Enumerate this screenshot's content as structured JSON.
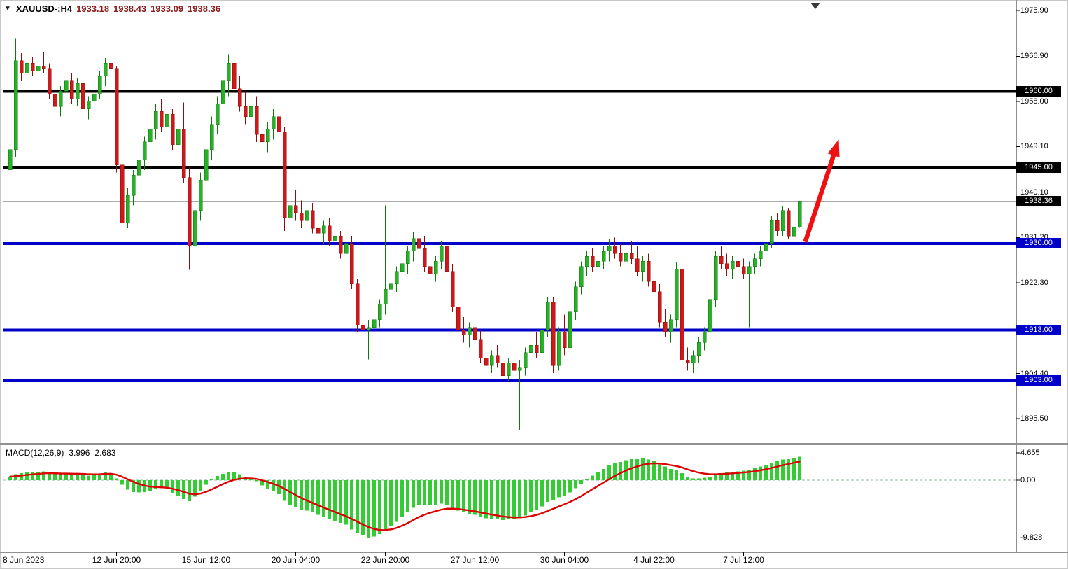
{
  "header": {
    "symbol_period": "XAUUSD-;H4",
    "open": "1933.18",
    "high": "1938.43",
    "low": "1933.09",
    "close": "1938.36"
  },
  "icons": {
    "symbol_dropdown": "▼"
  },
  "colors": {
    "bull_fill": "#28b028",
    "bull_stroke": "#0c7a0c",
    "bear_fill": "#d01818",
    "bear_stroke": "#8c0f0f",
    "line_black": "#000000",
    "line_blue": "#0000c8",
    "bid_line": "#aaaaaa",
    "bid_box": "#000000",
    "arrow": "#ee1111",
    "macd_hist": "#33cc33",
    "macd_signal": "#dd0000",
    "macd_zero": "#9ab89a",
    "axis_line": "#909090",
    "tick": "#000000"
  },
  "chart_data": {
    "type": "candlestick",
    "symbol": "XAUUSD",
    "timeframe": "H4",
    "grid": "off",
    "legend_position": "none",
    "price_axis": {
      "ylim_top": 1977.7,
      "ylim_bottom": 1890.7,
      "ticks": [
        {
          "v": 1975.9,
          "t": "1975.90"
        },
        {
          "v": 1966.9,
          "t": "1966.90"
        },
        {
          "v": 1958.0,
          "t": "1958.00"
        },
        {
          "v": 1949.1,
          "t": "1949.10"
        },
        {
          "v": 1940.1,
          "t": "1940.10"
        },
        {
          "v": 1931.2,
          "t": "1931.20"
        },
        {
          "v": 1922.3,
          "t": "1922.30"
        },
        {
          "v": 1904.4,
          "t": "1904.40"
        },
        {
          "v": 1895.5,
          "t": "1895.50"
        }
      ]
    },
    "time_axis": {
      "labels": [
        "8 Jun 2023",
        "12 Jun 20:00",
        "15 Jun 12:00",
        "20 Jun 04:00",
        "22 Jun 20:00",
        "27 Jun 12:00",
        "30 Jun 04:00",
        "4 Jul 22:00",
        "7 Jul 12:00"
      ],
      "indices": [
        0,
        19,
        35,
        51,
        67,
        83,
        99,
        115,
        131
      ]
    },
    "horizontal_lines": [
      {
        "price": 1960.0,
        "label": "1960.00",
        "color": "black"
      },
      {
        "price": 1945.0,
        "label": "1945.00",
        "color": "black"
      },
      {
        "price": 1930.0,
        "label": "1930.00",
        "color": "blue"
      },
      {
        "price": 1913.0,
        "label": "1913.00",
        "color": "blue"
      },
      {
        "price": 1903.0,
        "label": "1903.00",
        "color": "blue"
      }
    ],
    "bid": {
      "price": 1938.36,
      "label": "1938.36"
    },
    "arrow": {
      "from": {
        "index": 142,
        "price": 1930.3
      },
      "to": {
        "index": 148,
        "price": 1950.5
      }
    },
    "candles": [
      [
        1944.5,
        1950.0,
        1943.0,
        1948.5
      ],
      [
        1948.5,
        1970.3,
        1947.0,
        1966.0
      ],
      [
        1966.0,
        1967.5,
        1962.0,
        1963.5
      ],
      [
        1963.5,
        1966.5,
        1961.5,
        1965.5
      ],
      [
        1965.5,
        1966.8,
        1963.0,
        1964.0
      ],
      [
        1964.0,
        1966.0,
        1961.0,
        1965.0
      ],
      [
        1965.0,
        1967.8,
        1963.5,
        1964.5
      ],
      [
        1964.5,
        1965.5,
        1958.5,
        1959.5
      ],
      [
        1959.5,
        1962.0,
        1956.0,
        1957.0
      ],
      [
        1957.0,
        1961.0,
        1955.0,
        1960.0
      ],
      [
        1960.0,
        1963.0,
        1958.0,
        1962.0
      ],
      [
        1962.0,
        1963.5,
        1957.5,
        1958.5
      ],
      [
        1958.5,
        1962.5,
        1957.0,
        1961.5
      ],
      [
        1961.5,
        1962.5,
        1955.5,
        1956.5
      ],
      [
        1956.5,
        1959.0,
        1954.5,
        1958.0
      ],
      [
        1958.0,
        1960.5,
        1956.0,
        1959.5
      ],
      [
        1959.5,
        1964.0,
        1958.5,
        1963.0
      ],
      [
        1963.0,
        1966.5,
        1961.0,
        1965.5
      ],
      [
        1965.5,
        1969.5,
        1963.5,
        1964.5
      ],
      [
        1964.5,
        1965.0,
        1944.0,
        1945.5
      ],
      [
        1945.5,
        1947.0,
        1931.8,
        1934.0
      ],
      [
        1934.0,
        1941.0,
        1933.0,
        1939.5
      ],
      [
        1939.5,
        1944.5,
        1937.5,
        1943.5
      ],
      [
        1943.5,
        1947.5,
        1941.5,
        1946.5
      ],
      [
        1946.5,
        1951.0,
        1944.5,
        1950.0
      ],
      [
        1950.0,
        1954.0,
        1948.0,
        1952.5
      ],
      [
        1952.5,
        1957.5,
        1950.5,
        1956.0
      ],
      [
        1956.0,
        1958.5,
        1952.0,
        1953.0
      ],
      [
        1953.0,
        1957.0,
        1951.0,
        1955.5
      ],
      [
        1955.5,
        1956.5,
        1948.5,
        1949.5
      ],
      [
        1949.5,
        1953.5,
        1947.5,
        1952.5
      ],
      [
        1952.5,
        1957.8,
        1942.0,
        1943.0
      ],
      [
        1943.0,
        1945.0,
        1924.8,
        1929.5
      ],
      [
        1929.5,
        1938.0,
        1927.0,
        1936.5
      ],
      [
        1936.5,
        1944.0,
        1934.5,
        1942.5
      ],
      [
        1942.5,
        1950.0,
        1941.0,
        1948.5
      ],
      [
        1948.5,
        1955.0,
        1946.5,
        1953.5
      ],
      [
        1953.5,
        1959.0,
        1951.5,
        1957.5
      ],
      [
        1957.5,
        1963.5,
        1955.5,
        1962.0
      ],
      [
        1962.0,
        1967.3,
        1959.0,
        1965.5
      ],
      [
        1965.5,
        1966.5,
        1959.5,
        1960.5
      ],
      [
        1960.5,
        1963.0,
        1956.0,
        1957.0
      ],
      [
        1957.0,
        1960.0,
        1953.5,
        1955.0
      ],
      [
        1955.0,
        1958.5,
        1952.0,
        1957.0
      ],
      [
        1957.0,
        1959.0,
        1950.0,
        1951.5
      ],
      [
        1951.5,
        1954.5,
        1948.5,
        1950.0
      ],
      [
        1950.0,
        1954.0,
        1948.0,
        1952.5
      ],
      [
        1952.5,
        1956.5,
        1950.5,
        1955.0
      ],
      [
        1955.0,
        1957.5,
        1951.0,
        1952.0
      ],
      [
        1952.0,
        1953.0,
        1932.5,
        1935.0
      ],
      [
        1935.0,
        1939.5,
        1932.0,
        1937.5
      ],
      [
        1937.5,
        1940.5,
        1934.5,
        1936.0
      ],
      [
        1936.0,
        1938.5,
        1933.0,
        1934.5
      ],
      [
        1934.5,
        1937.5,
        1932.5,
        1936.5
      ],
      [
        1936.5,
        1938.0,
        1932.0,
        1933.0
      ],
      [
        1933.0,
        1935.5,
        1930.5,
        1932.0
      ],
      [
        1932.0,
        1934.5,
        1930.0,
        1933.5
      ],
      [
        1933.5,
        1935.0,
        1929.5,
        1930.5
      ],
      [
        1930.5,
        1933.0,
        1928.5,
        1931.5
      ],
      [
        1931.5,
        1932.5,
        1927.0,
        1928.0
      ],
      [
        1928.0,
        1931.0,
        1925.5,
        1930.0
      ],
      [
        1930.0,
        1931.5,
        1921.0,
        1922.0
      ],
      [
        1922.0,
        1923.0,
        1912.5,
        1914.0
      ],
      [
        1914.0,
        1916.5,
        1911.5,
        1913.0
      ],
      [
        1913.0,
        1915.0,
        1907.2,
        1913.5
      ],
      [
        1913.5,
        1916.0,
        1911.5,
        1915.0
      ],
      [
        1915.0,
        1919.0,
        1913.5,
        1918.0
      ],
      [
        1918.0,
        1937.5,
        1916.0,
        1921.0
      ],
      [
        1921.0,
        1923.0,
        1918.0,
        1922.0
      ],
      [
        1922.0,
        1925.5,
        1920.5,
        1924.5
      ],
      [
        1924.5,
        1927.0,
        1922.5,
        1926.0
      ],
      [
        1926.0,
        1929.5,
        1924.0,
        1928.5
      ],
      [
        1928.5,
        1932.3,
        1926.5,
        1931.0
      ],
      [
        1931.0,
        1933.0,
        1928.0,
        1929.0
      ],
      [
        1929.0,
        1931.5,
        1924.5,
        1925.5
      ],
      [
        1925.5,
        1928.0,
        1923.0,
        1924.0
      ],
      [
        1924.0,
        1927.5,
        1922.5,
        1926.5
      ],
      [
        1926.5,
        1930.5,
        1925.0,
        1929.5
      ],
      [
        1929.5,
        1930.5,
        1923.5,
        1924.5
      ],
      [
        1924.5,
        1926.0,
        1916.5,
        1917.5
      ],
      [
        1917.5,
        1919.0,
        1912.0,
        1913.0
      ],
      [
        1913.0,
        1915.5,
        1910.5,
        1912.0
      ],
      [
        1912.0,
        1914.5,
        1909.5,
        1913.5
      ],
      [
        1913.5,
        1915.0,
        1910.0,
        1911.0
      ],
      [
        1911.0,
        1913.0,
        1906.5,
        1907.5
      ],
      [
        1907.5,
        1910.5,
        1905.0,
        1906.0
      ],
      [
        1906.0,
        1909.0,
        1904.5,
        1908.0
      ],
      [
        1908.0,
        1910.0,
        1905.5,
        1906.5
      ],
      [
        1906.5,
        1908.0,
        1902.5,
        1904.0
      ],
      [
        1904.0,
        1907.5,
        1903.0,
        1906.5
      ],
      [
        1906.5,
        1908.5,
        1904.0,
        1905.0
      ],
      [
        1905.0,
        1907.0,
        1893.3,
        1905.5
      ],
      [
        1905.5,
        1909.5,
        1904.0,
        1908.5
      ],
      [
        1908.5,
        1911.0,
        1906.0,
        1910.0
      ],
      [
        1910.0,
        1912.5,
        1907.5,
        1908.5
      ],
      [
        1908.5,
        1914.0,
        1907.0,
        1913.0
      ],
      [
        1913.0,
        1919.5,
        1911.5,
        1918.5
      ],
      [
        1918.5,
        1919.5,
        1904.5,
        1906.0
      ],
      [
        1906.0,
        1913.5,
        1905.0,
        1912.5
      ],
      [
        1912.5,
        1916.0,
        1908.0,
        1909.5
      ],
      [
        1909.5,
        1917.5,
        1908.5,
        1916.5
      ],
      [
        1916.5,
        1922.5,
        1915.0,
        1921.5
      ],
      [
        1921.5,
        1926.5,
        1920.0,
        1925.5
      ],
      [
        1925.5,
        1928.5,
        1923.5,
        1927.5
      ],
      [
        1927.5,
        1929.0,
        1924.5,
        1925.5
      ],
      [
        1925.5,
        1928.0,
        1923.0,
        1926.5
      ],
      [
        1926.5,
        1929.5,
        1925.0,
        1928.5
      ],
      [
        1928.5,
        1930.8,
        1926.5,
        1929.5
      ],
      [
        1929.5,
        1931.2,
        1927.0,
        1928.0
      ],
      [
        1928.0,
        1930.0,
        1925.5,
        1926.5
      ],
      [
        1926.5,
        1929.0,
        1924.5,
        1928.0
      ],
      [
        1928.0,
        1930.5,
        1926.0,
        1927.0
      ],
      [
        1927.0,
        1929.5,
        1923.5,
        1924.5
      ],
      [
        1924.5,
        1927.5,
        1922.5,
        1926.5
      ],
      [
        1926.5,
        1928.0,
        1921.5,
        1922.5
      ],
      [
        1922.5,
        1925.0,
        1919.5,
        1920.5
      ],
      [
        1920.5,
        1922.0,
        1913.5,
        1914.5
      ],
      [
        1914.5,
        1917.0,
        1911.5,
        1912.5
      ],
      [
        1912.5,
        1916.0,
        1910.5,
        1915.0
      ],
      [
        1915.0,
        1926.3,
        1913.5,
        1925.0
      ],
      [
        1925.0,
        1926.0,
        1903.8,
        1907.0
      ],
      [
        1907.0,
        1909.5,
        1905.0,
        1906.5
      ],
      [
        1906.5,
        1909.0,
        1904.5,
        1908.0
      ],
      [
        1908.0,
        1911.5,
        1906.5,
        1910.5
      ],
      [
        1910.5,
        1913.5,
        1909.0,
        1912.5
      ],
      [
        1912.5,
        1920.0,
        1911.5,
        1919.0
      ],
      [
        1919.0,
        1928.5,
        1917.5,
        1927.5
      ],
      [
        1927.5,
        1929.5,
        1925.0,
        1926.0
      ],
      [
        1926.0,
        1928.0,
        1923.5,
        1925.0
      ],
      [
        1925.0,
        1927.5,
        1923.0,
        1926.5
      ],
      [
        1926.5,
        1928.5,
        1924.5,
        1925.5
      ],
      [
        1925.5,
        1927.0,
        1923.0,
        1924.0
      ],
      [
        1924.0,
        1926.5,
        1913.5,
        1925.5
      ],
      [
        1925.5,
        1928.0,
        1924.0,
        1927.0
      ],
      [
        1927.0,
        1929.5,
        1925.5,
        1928.5
      ],
      [
        1928.5,
        1931.0,
        1927.0,
        1930.0
      ],
      [
        1930.0,
        1935.5,
        1929.0,
        1934.5
      ],
      [
        1934.5,
        1936.0,
        1931.5,
        1932.5
      ],
      [
        1932.5,
        1937.3,
        1931.5,
        1936.5
      ],
      [
        1936.5,
        1937.0,
        1930.8,
        1931.5
      ],
      [
        1931.5,
        1934.0,
        1930.5,
        1933.2
      ],
      [
        1933.18,
        1938.43,
        1933.09,
        1938.36
      ]
    ],
    "macd": {
      "label": "MACD(12,26,9)",
      "main_value": "3.996",
      "signal_value": "2.683",
      "axis": [
        {
          "v": 4.655,
          "t": "4.655"
        },
        {
          "v": 0,
          "t": "0.00"
        },
        {
          "v": -9.828,
          "t": "-9.828"
        }
      ],
      "ylim": [
        -12.2,
        5.8
      ],
      "histogram": [
        0.6,
        1.0,
        1.2,
        1.3,
        1.4,
        1.4,
        1.5,
        1.3,
        1.1,
        1.0,
        1.1,
        1.0,
        1.1,
        0.9,
        0.8,
        0.9,
        1.1,
        1.3,
        1.2,
        0.3,
        -0.8,
        -1.6,
        -2.0,
        -2.1,
        -2.0,
        -1.8,
        -1.5,
        -1.4,
        -1.5,
        -2.2,
        -2.6,
        -3.2,
        -3.6,
        -2.8,
        -1.8,
        -0.8,
        0.1,
        0.7,
        1.1,
        1.4,
        1.3,
        1.0,
        0.6,
        0.3,
        -0.2,
        -0.9,
        -1.5,
        -1.9,
        -2.4,
        -3.5,
        -4.2,
        -4.6,
        -5.0,
        -5.2,
        -5.5,
        -5.9,
        -6.2,
        -6.6,
        -6.9,
        -7.3,
        -7.6,
        -8.4,
        -9.0,
        -9.4,
        -9.8,
        -9.6,
        -9.2,
        -8.6,
        -7.9,
        -7.1,
        -6.3,
        -5.5,
        -4.7,
        -4.3,
        -4.2,
        -4.3,
        -4.2,
        -4.0,
        -4.2,
        -4.8,
        -5.2,
        -5.5,
        -5.7,
        -5.9,
        -6.2,
        -6.5,
        -6.6,
        -6.7,
        -6.8,
        -6.7,
        -6.6,
        -6.4,
        -6.0,
        -5.5,
        -5.1,
        -4.5,
        -3.7,
        -3.4,
        -2.9,
        -2.6,
        -2.1,
        -1.4,
        -0.6,
        0.2,
        0.8,
        1.3,
        1.9,
        2.5,
        2.9,
        3.1,
        3.4,
        3.6,
        3.6,
        3.7,
        3.5,
        3.2,
        2.7,
        2.3,
        1.9,
        1.8,
        1.2,
        0.5,
        0.3,
        0.3,
        0.4,
        0.6,
        1.0,
        1.2,
        1.3,
        1.4,
        1.5,
        1.6,
        1.8,
        2.0,
        2.3,
        2.6,
        3.0,
        3.2,
        3.5,
        3.6,
        3.8,
        3.996
      ]
    }
  }
}
